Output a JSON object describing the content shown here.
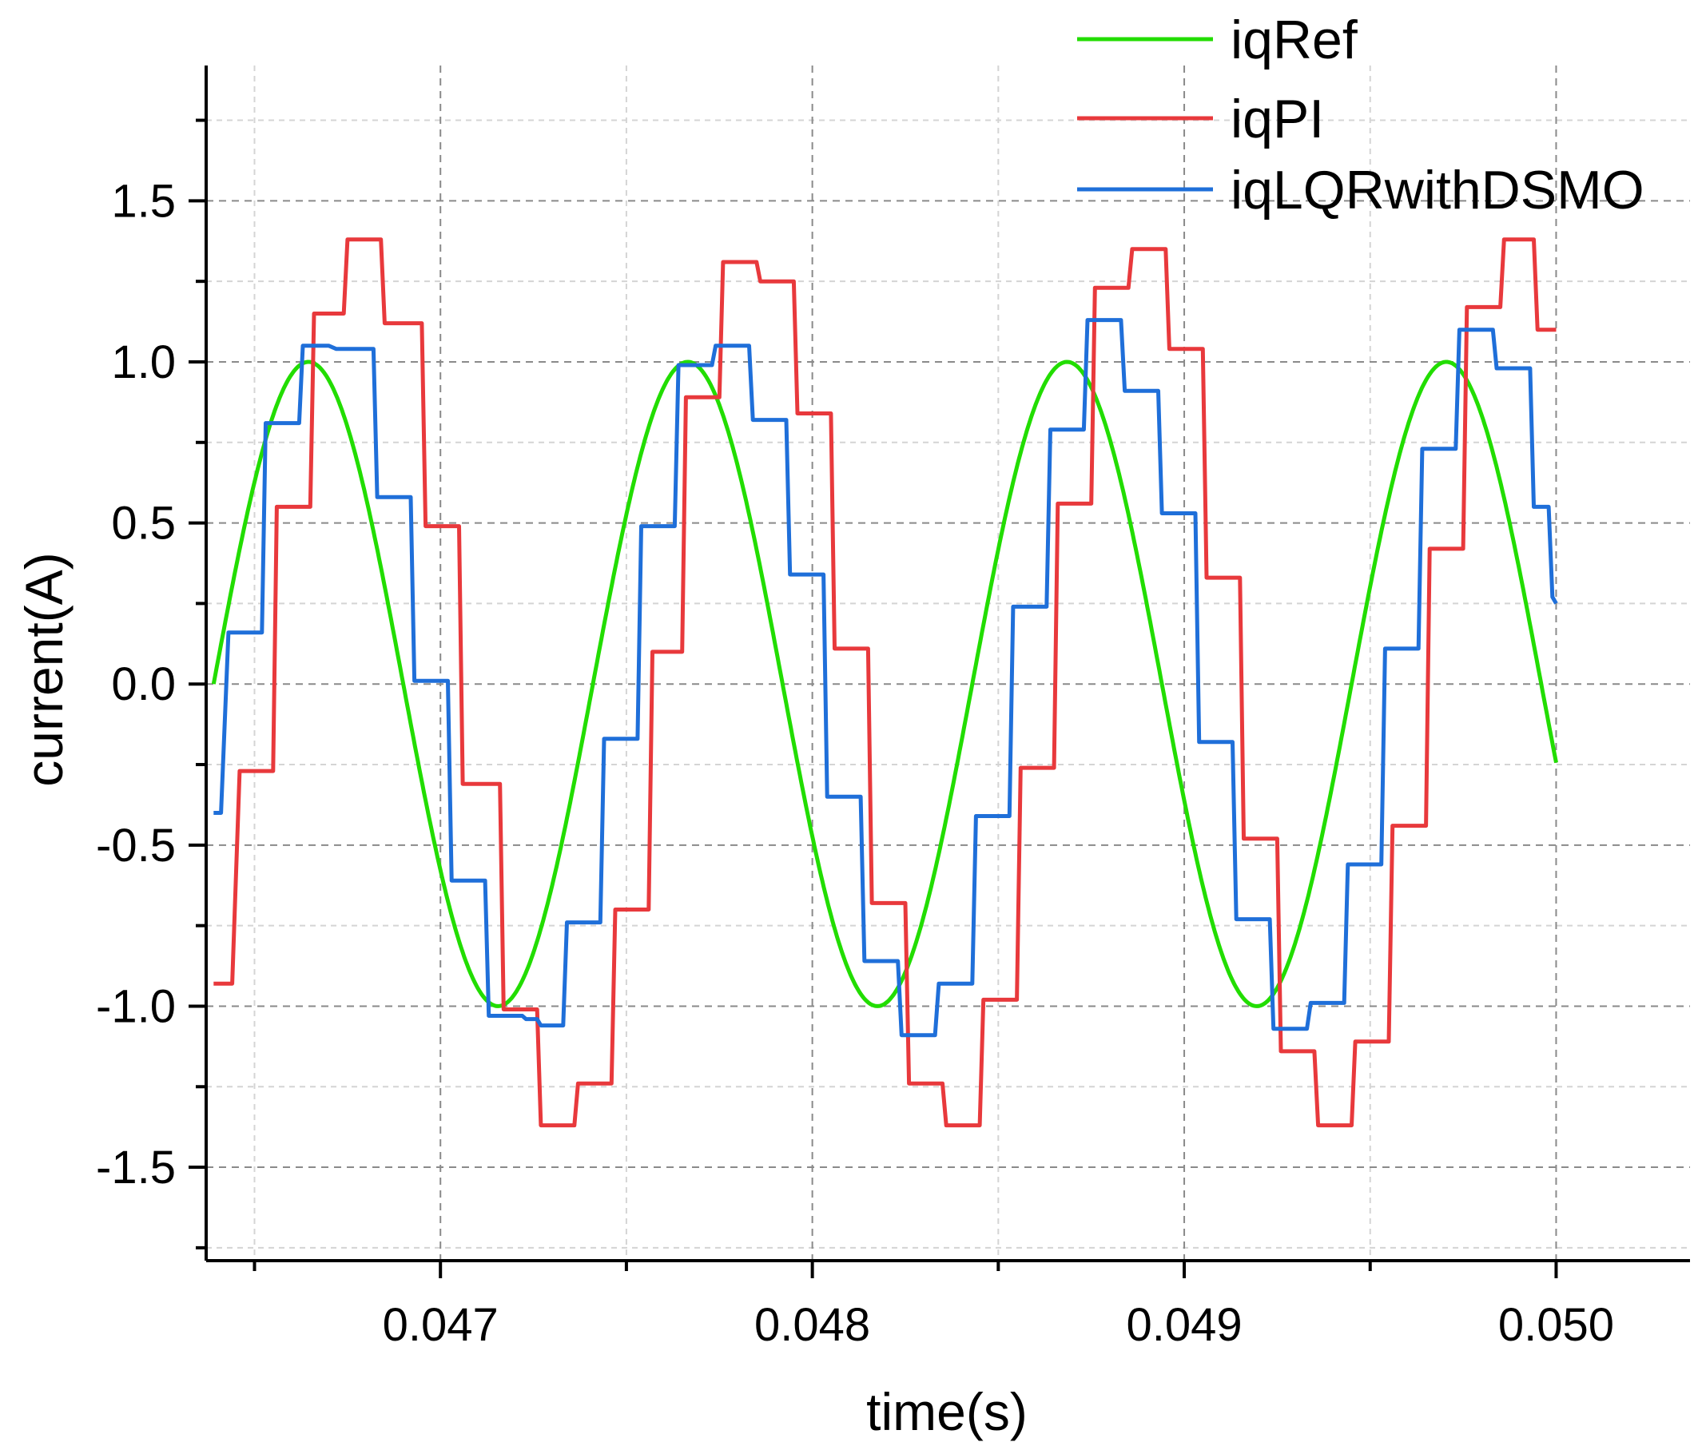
{
  "chart_data": {
    "type": "line",
    "title": "",
    "xlabel": "time(s)",
    "ylabel": "current(A)",
    "xlim": [
      0.04637,
      0.05036
    ],
    "ylim": [
      -1.79,
      1.92
    ],
    "grid": true,
    "legend_position": "top-right",
    "xticks": [
      {
        "value": 0.047,
        "label": "0.047"
      },
      {
        "value": 0.048,
        "label": "0.048"
      },
      {
        "value": 0.049,
        "label": "0.049"
      },
      {
        "value": 0.05,
        "label": "0.050"
      }
    ],
    "xminor": [
      0.0465,
      0.0475,
      0.0485,
      0.0495
    ],
    "yticks": [
      {
        "value": 1.5,
        "label": "1.5"
      },
      {
        "value": 1.0,
        "label": "1.0"
      },
      {
        "value": 0.5,
        "label": "0.5"
      },
      {
        "value": 0.0,
        "label": "0.0"
      },
      {
        "value": -0.5,
        "label": "-0.5"
      },
      {
        "value": -1.0,
        "label": "-1.0"
      },
      {
        "value": -1.5,
        "label": "-1.5"
      }
    ],
    "yminor": [
      1.75,
      1.25,
      0.75,
      0.25,
      -0.25,
      -0.75,
      -1.25,
      -1.75
    ],
    "series": [
      {
        "name": "iqRef",
        "color": "#22dd00",
        "kind": "sine",
        "amplitude": 1.0,
        "period": 0.00102,
        "zero_crossing": 0.04639,
        "x_start": 0.04639,
        "x_end": 0.05
      },
      {
        "name": "iqPI",
        "color": "#e8393c",
        "kind": "step",
        "points": [
          [
            0.04639,
            -0.93
          ],
          [
            0.04644,
            -0.93
          ],
          [
            0.04646,
            -0.27
          ],
          [
            0.04655,
            -0.27
          ],
          [
            0.04656,
            0.55
          ],
          [
            0.04665,
            0.55
          ],
          [
            0.04666,
            1.15
          ],
          [
            0.04674,
            1.15
          ],
          [
            0.04675,
            1.38
          ],
          [
            0.04684,
            1.38
          ],
          [
            0.04685,
            1.12
          ],
          [
            0.04695,
            1.12
          ],
          [
            0.04696,
            0.49
          ],
          [
            0.04705,
            0.49
          ],
          [
            0.04706,
            -0.31
          ],
          [
            0.04716,
            -0.31
          ],
          [
            0.04717,
            -1.01
          ],
          [
            0.04726,
            -1.01
          ],
          [
            0.04727,
            -1.37
          ],
          [
            0.04736,
            -1.37
          ],
          [
            0.04737,
            -1.24
          ],
          [
            0.04746,
            -1.24
          ],
          [
            0.04747,
            -0.7
          ],
          [
            0.04756,
            -0.7
          ],
          [
            0.04757,
            0.1
          ],
          [
            0.04765,
            0.1
          ],
          [
            0.04766,
            0.89
          ],
          [
            0.04775,
            0.89
          ],
          [
            0.04776,
            1.31
          ],
          [
            0.04785,
            1.31
          ],
          [
            0.04786,
            1.25
          ],
          [
            0.04795,
            1.25
          ],
          [
            0.04796,
            0.84
          ],
          [
            0.04805,
            0.84
          ],
          [
            0.04806,
            0.11
          ],
          [
            0.04815,
            0.11
          ],
          [
            0.04816,
            -0.68
          ],
          [
            0.04825,
            -0.68
          ],
          [
            0.04826,
            -1.24
          ],
          [
            0.04835,
            -1.24
          ],
          [
            0.04836,
            -1.37
          ],
          [
            0.04845,
            -1.37
          ],
          [
            0.04846,
            -0.98
          ],
          [
            0.04855,
            -0.98
          ],
          [
            0.04856,
            -0.26
          ],
          [
            0.04865,
            -0.26
          ],
          [
            0.04866,
            0.56
          ],
          [
            0.04875,
            0.56
          ],
          [
            0.04876,
            1.23
          ],
          [
            0.04885,
            1.23
          ],
          [
            0.04886,
            1.35
          ],
          [
            0.04895,
            1.35
          ],
          [
            0.04896,
            1.04
          ],
          [
            0.04905,
            1.04
          ],
          [
            0.04906,
            0.33
          ],
          [
            0.04915,
            0.33
          ],
          [
            0.04916,
            -0.48
          ],
          [
            0.04925,
            -0.48
          ],
          [
            0.04926,
            -1.14
          ],
          [
            0.04935,
            -1.14
          ],
          [
            0.04936,
            -1.37
          ],
          [
            0.04945,
            -1.37
          ],
          [
            0.04946,
            -1.11
          ],
          [
            0.04955,
            -1.11
          ],
          [
            0.04956,
            -0.44
          ],
          [
            0.04965,
            -0.44
          ],
          [
            0.04966,
            0.42
          ],
          [
            0.04975,
            0.42
          ],
          [
            0.04976,
            1.17
          ],
          [
            0.04985,
            1.17
          ],
          [
            0.04986,
            1.38
          ],
          [
            0.04994,
            1.38
          ],
          [
            0.04995,
            1.1
          ],
          [
            0.05,
            1.1
          ]
        ]
      },
      {
        "name": "iqLQRwithDSMO",
        "color": "#1f6fd9",
        "kind": "step",
        "points": [
          [
            0.04639,
            -0.4
          ],
          [
            0.04641,
            -0.4
          ],
          [
            0.04643,
            0.16
          ],
          [
            0.04652,
            0.16
          ],
          [
            0.04653,
            0.81
          ],
          [
            0.04662,
            0.81
          ],
          [
            0.04663,
            1.05
          ],
          [
            0.0467,
            1.05
          ],
          [
            0.04672,
            1.04
          ],
          [
            0.04682,
            1.04
          ],
          [
            0.04683,
            0.58
          ],
          [
            0.04692,
            0.58
          ],
          [
            0.04693,
            0.01
          ],
          [
            0.04702,
            0.01
          ],
          [
            0.04703,
            -0.61
          ],
          [
            0.04712,
            -0.61
          ],
          [
            0.04713,
            -1.03
          ],
          [
            0.04722,
            -1.03
          ],
          [
            0.04723,
            -1.04
          ],
          [
            0.04726,
            -1.04
          ],
          [
            0.04727,
            -1.06
          ],
          [
            0.04733,
            -1.06
          ],
          [
            0.04734,
            -0.74
          ],
          [
            0.04743,
            -0.74
          ],
          [
            0.04744,
            -0.17
          ],
          [
            0.04753,
            -0.17
          ],
          [
            0.04754,
            0.49
          ],
          [
            0.04763,
            0.49
          ],
          [
            0.04764,
            0.99
          ],
          [
            0.04773,
            0.99
          ],
          [
            0.04774,
            1.05
          ],
          [
            0.04783,
            1.05
          ],
          [
            0.04784,
            0.82
          ],
          [
            0.04793,
            0.82
          ],
          [
            0.04794,
            0.34
          ],
          [
            0.04803,
            0.34
          ],
          [
            0.04804,
            -0.35
          ],
          [
            0.04813,
            -0.35
          ],
          [
            0.04814,
            -0.86
          ],
          [
            0.04823,
            -0.86
          ],
          [
            0.04824,
            -1.09
          ],
          [
            0.04833,
            -1.09
          ],
          [
            0.04834,
            -0.93
          ],
          [
            0.04843,
            -0.93
          ],
          [
            0.04844,
            -0.41
          ],
          [
            0.04853,
            -0.41
          ],
          [
            0.04854,
            0.24
          ],
          [
            0.04863,
            0.24
          ],
          [
            0.04864,
            0.79
          ],
          [
            0.04873,
            0.79
          ],
          [
            0.04874,
            1.13
          ],
          [
            0.04883,
            1.13
          ],
          [
            0.04884,
            0.91
          ],
          [
            0.04893,
            0.91
          ],
          [
            0.04894,
            0.53
          ],
          [
            0.04903,
            0.53
          ],
          [
            0.04904,
            -0.18
          ],
          [
            0.04913,
            -0.18
          ],
          [
            0.04914,
            -0.73
          ],
          [
            0.04923,
            -0.73
          ],
          [
            0.04924,
            -1.07
          ],
          [
            0.04933,
            -1.07
          ],
          [
            0.04934,
            -0.99
          ],
          [
            0.04943,
            -0.99
          ],
          [
            0.04944,
            -0.56
          ],
          [
            0.04953,
            -0.56
          ],
          [
            0.04954,
            0.11
          ],
          [
            0.04963,
            0.11
          ],
          [
            0.04964,
            0.73
          ],
          [
            0.04973,
            0.73
          ],
          [
            0.04974,
            1.1
          ],
          [
            0.04983,
            1.1
          ],
          [
            0.04984,
            0.98
          ],
          [
            0.04993,
            0.98
          ],
          [
            0.04994,
            0.55
          ],
          [
            0.04998,
            0.55
          ],
          [
            0.04999,
            0.27
          ],
          [
            0.05,
            0.25
          ]
        ]
      }
    ]
  }
}
